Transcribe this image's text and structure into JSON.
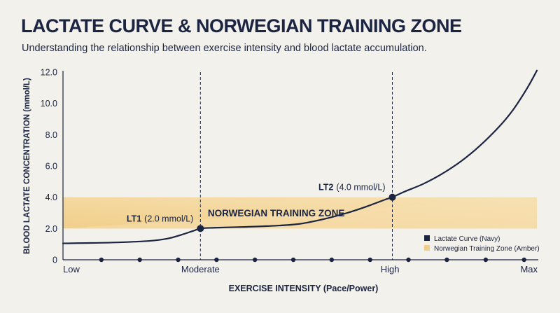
{
  "colors": {
    "background": "#f2f1ec",
    "navy": "#1b2440",
    "amber_light": "#f6dfae",
    "amber_dark": "#f1cf8a",
    "axis": "#1b2440"
  },
  "chart_data": {
    "type": "line",
    "title": "LACTATE CURVE & NORWEGIAN TRAINING ZONE",
    "subtitle": "Understanding the relationship between exercise intensity and blood lactate accumulation.",
    "xlabel": "EXERCISE INTENSITY (Pace/Power)",
    "ylabel": "BLOOD LACTATE CONCENTRATION (mmol/L)",
    "xlim": [
      0,
      100
    ],
    "ylim": [
      0,
      12
    ],
    "yticks": [
      "0",
      "2.0",
      "4.0",
      "6.0",
      "8.0",
      "10.0",
      "12.0"
    ],
    "xtick_labels": [
      {
        "x": 0,
        "label": "Low"
      },
      {
        "x": 29,
        "label": "Moderate"
      },
      {
        "x": 69,
        "label": "High"
      },
      {
        "x": 100,
        "label": "Max"
      }
    ],
    "x_markers": [
      8.1,
      16.2,
      24.3,
      32.4,
      40.5,
      48.6,
      56.7,
      64.8,
      72.9,
      81.0,
      89.2,
      97.3
    ],
    "series": [
      {
        "name": "Lactate Curve (Navy)",
        "x": [
          0,
          10,
          18,
          22,
          25,
          27.5,
          29,
          32,
          38,
          45,
          50,
          55,
          60,
          64,
          68,
          69.5,
          72,
          76,
          80,
          84,
          88,
          92,
          95,
          98,
          100
        ],
        "y": [
          1.05,
          1.1,
          1.2,
          1.35,
          1.6,
          1.85,
          2.0,
          2.05,
          2.1,
          2.18,
          2.3,
          2.6,
          3.0,
          3.4,
          3.85,
          4.0,
          4.35,
          4.85,
          5.5,
          6.3,
          7.3,
          8.5,
          9.6,
          11.0,
          12.1
        ]
      }
    ],
    "zones": [
      {
        "name": "Norwegian Training Zone (Amber)",
        "label": "NORWEGIAN TRAINING ZONE",
        "y_range": [
          2.0,
          4.0
        ]
      }
    ],
    "annotations": [
      {
        "id": "lt1",
        "name": "LT1",
        "detail": "(2.0 mmol/L)",
        "x": 29,
        "y": 2.0
      },
      {
        "id": "lt2",
        "name": "LT2",
        "detail": "(4.0 mmol/L)",
        "x": 69.5,
        "y": 4.0
      }
    ],
    "legend_placement": "bottom-right",
    "grid": false
  }
}
